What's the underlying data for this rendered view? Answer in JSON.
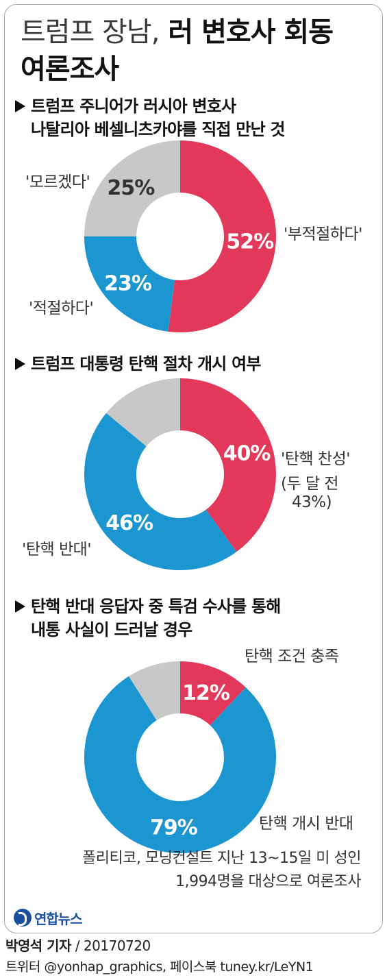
{
  "title": {
    "part1": "트럼프 장남,",
    "part2": "러 변호사 회동",
    "part3": "여론조사"
  },
  "colors": {
    "red": "#e2395a",
    "blue": "#1b96d1",
    "gray": "#c8c8c8"
  },
  "sections": [
    {
      "title_line1": "트럼프 주니어가 러시아 변호사",
      "title_line2": "나탈리아 베셀니츠카야를 직접 만난 것",
      "labels": {
        "red": "'부적절하다'",
        "blue": "'적절하다'",
        "gray": "'모르겠다'"
      }
    },
    {
      "title_line1": "트럼프 대통령 탄핵 절차 개시 여부",
      "labels": {
        "red": "'탄핵 찬성'",
        "red_note1": "(두 달 전",
        "red_note2": "43%)",
        "blue": "'탄핵 반대'"
      }
    },
    {
      "title_line1": "탄핵 반대 응답자 중 특검 수사를 통해",
      "title_line2": "내통 사실이 드러날 경우",
      "labels": {
        "red": "탄핵 조건 충족",
        "blue": "탄핵 개시 반대"
      }
    }
  ],
  "chart_data": [
    {
      "type": "pie",
      "title": "트럼프 주니어가 러시아 변호사 나탈리아 베셀니츠카야를 직접 만난 것",
      "slices": [
        {
          "label": "'부적절하다'",
          "value": 52,
          "value_label": "52%",
          "color": "#e2395a"
        },
        {
          "label": "'적절하다'",
          "value": 23,
          "value_label": "23%",
          "color": "#1b96d1"
        },
        {
          "label": "'모르겠다'",
          "value": 25,
          "value_label": "25%",
          "color": "#c8c8c8"
        }
      ]
    },
    {
      "type": "pie",
      "title": "트럼프 대통령 탄핵 절차 개시 여부",
      "slices": [
        {
          "label": "'탄핵 찬성'",
          "value": 40,
          "value_label": "40%",
          "color": "#e2395a"
        },
        {
          "label": "'탄핵 반대'",
          "value": 46,
          "value_label": "46%",
          "color": "#1b96d1"
        },
        {
          "label": "",
          "value": 14,
          "value_label": "",
          "color": "#c8c8c8"
        }
      ]
    },
    {
      "type": "pie",
      "title": "탄핵 반대 응답자 중 특검 수사를 통해 내통 사실이 드러날 경우",
      "slices": [
        {
          "label": "탄핵 조건 충족",
          "value": 12,
          "value_label": "12%",
          "color": "#e2395a"
        },
        {
          "label": "탄핵 개시 반대",
          "value": 79,
          "value_label": "79%",
          "color": "#1b96d1"
        },
        {
          "label": "",
          "value": 9,
          "value_label": "",
          "color": "#c8c8c8"
        }
      ]
    }
  ],
  "note": {
    "line1": "폴리티코, 모닝컨설트 지난 13~15일 미 성인",
    "line2": "1,994명을 대상으로 여론조사"
  },
  "logo": {
    "name": "연합뉴스"
  },
  "credit": {
    "reporter": "박영석 기자",
    "date": "/ 20170720"
  },
  "contact": "트위터 @yonhap_graphics, 페이스북 tuney.kr/LeYN1"
}
